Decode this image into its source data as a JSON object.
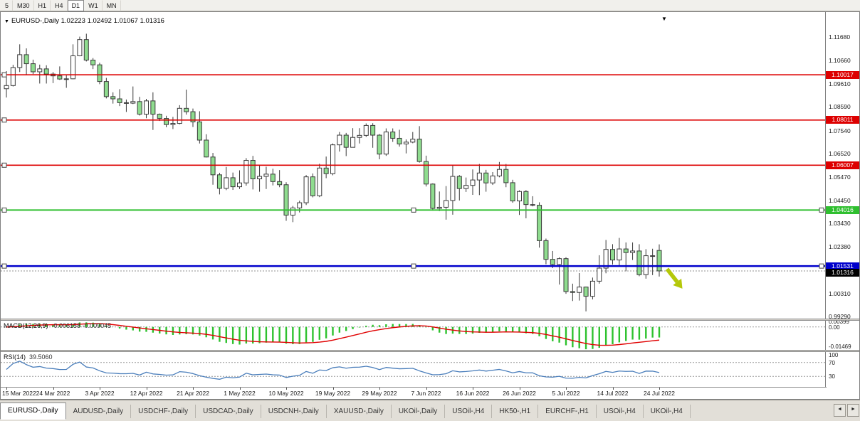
{
  "toolbar": {
    "timeframes": [
      "5",
      "M30",
      "H1",
      "H4",
      "D1",
      "W1",
      "MN"
    ],
    "active": "D1"
  },
  "chart_header": {
    "symbol": "EURUSD-,Daily",
    "ohlc": "1.02223 1.02492 1.01067 1.01316",
    "dropdown_icon": "▼",
    "shift_marker_icon": "▼"
  },
  "chart_data": {
    "type": "candlestick",
    "symbol": "EURUSD-",
    "timeframe": "Daily",
    "title": "EURUSD-,Daily",
    "ohlc_current": {
      "open": 1.02223,
      "high": 1.02492,
      "low": 1.01067,
      "close": 1.01316
    },
    "ylim": [
      0.992,
      1.128
    ],
    "y_ticks": [
      1.1168,
      1.1066,
      1.0961,
      1.0859,
      1.0754,
      1.0652,
      1.0547,
      1.0445,
      1.0343,
      1.0238,
      1.0031,
      0.9929
    ],
    "x_labels": [
      "15 Mar 2022",
      "24 Mar 2022",
      "3 Apr 2022",
      "12 Apr 2022",
      "21 Apr 2022",
      "1 May 2022",
      "10 May 2022",
      "19 May 2022",
      "29 May 2022",
      "7 Jun 2022",
      "16 Jun 2022",
      "26 Jun 2022",
      "5 Jul 2022",
      "14 Jul 2022",
      "24 Jul 2022"
    ],
    "candles": [
      [
        1.094,
        1.1018,
        1.0901,
        1.0954
      ],
      [
        1.0954,
        1.1046,
        1.095,
        1.1034
      ],
      [
        1.1034,
        1.1137,
        1.1014,
        1.1091
      ],
      [
        1.1091,
        1.1119,
        1.1003,
        1.1051
      ],
      [
        1.1051,
        1.1069,
        1.1005,
        1.1015
      ],
      [
        1.1015,
        1.1047,
        1.0963,
        1.1028
      ],
      [
        1.1028,
        1.1044,
        1.0963,
        1.1005
      ],
      [
        1.1005,
        1.1014,
        1.0965,
        1.0997
      ],
      [
        1.0997,
        1.1039,
        1.0979,
        1.0983
      ],
      [
        1.0983,
        1.0999,
        1.0944,
        1.0984
      ],
      [
        1.0984,
        1.1137,
        1.0982,
        1.1086
      ],
      [
        1.1086,
        1.1171,
        1.1084,
        1.1158
      ],
      [
        1.1158,
        1.1184,
        1.1061,
        1.1067
      ],
      [
        1.1067,
        1.1076,
        1.1027,
        1.1046
      ],
      [
        1.1046,
        1.1055,
        1.096,
        1.0972
      ],
      [
        1.0972,
        1.0988,
        1.0897,
        1.0905
      ],
      [
        1.0905,
        1.0924,
        1.0874,
        1.0895
      ],
      [
        1.0895,
        1.0938,
        1.0863,
        1.0878
      ],
      [
        1.0878,
        1.0892,
        1.0837,
        1.0876
      ],
      [
        1.0876,
        1.095,
        1.0872,
        1.0883
      ],
      [
        1.0883,
        1.0904,
        1.0821,
        1.0827
      ],
      [
        1.0827,
        1.0895,
        1.0809,
        1.0886
      ],
      [
        1.0886,
        1.0924,
        1.0757,
        1.0827
      ],
      [
        1.0827,
        1.083,
        1.0797,
        1.0808
      ],
      [
        1.0808,
        1.082,
        1.0769,
        1.0781
      ],
      [
        1.0781,
        1.0815,
        1.0761,
        1.0786
      ],
      [
        1.0786,
        1.0867,
        1.0782,
        1.0853
      ],
      [
        1.0853,
        1.0936,
        1.0825,
        1.0838
      ],
      [
        1.0838,
        1.0852,
        1.077,
        1.0793
      ],
      [
        1.0793,
        1.084,
        1.0697,
        1.0712
      ],
      [
        1.0712,
        1.0738,
        1.0635,
        1.0637
      ],
      [
        1.0637,
        1.0655,
        1.0514,
        1.0558
      ],
      [
        1.0558,
        1.0567,
        1.0471,
        1.0498
      ],
      [
        1.0498,
        1.0593,
        1.049,
        1.0545
      ],
      [
        1.0545,
        1.0568,
        1.0491,
        1.0505
      ],
      [
        1.0505,
        1.0578,
        1.0495,
        1.0522
      ],
      [
        1.0522,
        1.0632,
        1.051,
        1.0622
      ],
      [
        1.0622,
        1.0642,
        1.0493,
        1.054
      ],
      [
        1.054,
        1.0599,
        1.0483,
        1.0551
      ],
      [
        1.0551,
        1.0594,
        1.0495,
        1.0561
      ],
      [
        1.0561,
        1.0585,
        1.0511,
        1.0528
      ],
      [
        1.0528,
        1.0579,
        1.0503,
        1.0514
      ],
      [
        1.0514,
        1.0525,
        1.0354,
        1.0379
      ],
      [
        1.0379,
        1.042,
        1.0348,
        1.0411
      ],
      [
        1.0411,
        1.0443,
        1.0391,
        1.0434
      ],
      [
        1.0434,
        1.0557,
        1.0424,
        1.0549
      ],
      [
        1.0549,
        1.0564,
        1.0458,
        1.0465
      ],
      [
        1.0465,
        1.0607,
        1.0459,
        1.0588
      ],
      [
        1.0588,
        1.0639,
        1.0543,
        1.0563
      ],
      [
        1.0563,
        1.0697,
        1.0556,
        1.0691
      ],
      [
        1.0691,
        1.0748,
        1.0661,
        1.0734
      ],
      [
        1.0734,
        1.0744,
        1.0641,
        1.068
      ],
      [
        1.068,
        1.0765,
        1.068,
        1.0724
      ],
      [
        1.0724,
        1.0765,
        1.0697,
        1.0733
      ],
      [
        1.0733,
        1.0786,
        1.0726,
        1.0777
      ],
      [
        1.0777,
        1.0787,
        1.0678,
        1.0734
      ],
      [
        1.0734,
        1.0739,
        1.0627,
        1.065
      ],
      [
        1.065,
        1.0764,
        1.0642,
        1.0748
      ],
      [
        1.0748,
        1.0764,
        1.0704,
        1.072
      ],
      [
        1.072,
        1.0758,
        1.0683,
        1.0695
      ],
      [
        1.0695,
        1.0715,
        1.0653,
        1.0703
      ],
      [
        1.0703,
        1.0748,
        1.0698,
        1.0716
      ],
      [
        1.0716,
        1.0774,
        1.0612,
        1.0617
      ],
      [
        1.0617,
        1.0643,
        1.0506,
        1.0517
      ],
      [
        1.0517,
        1.052,
        1.0399,
        1.0409
      ],
      [
        1.0409,
        1.0484,
        1.0397,
        1.0414
      ],
      [
        1.0414,
        1.0508,
        1.0359,
        1.0444
      ],
      [
        1.0444,
        1.0601,
        1.0381,
        1.0551
      ],
      [
        1.0551,
        1.0557,
        1.0444,
        1.0497
      ],
      [
        1.0497,
        1.0546,
        1.0482,
        1.0511
      ],
      [
        1.0511,
        1.0582,
        1.0469,
        1.0535
      ],
      [
        1.0535,
        1.0606,
        1.0468,
        1.0566
      ],
      [
        1.0566,
        1.058,
        1.0483,
        1.0522
      ],
      [
        1.0522,
        1.057,
        1.0513,
        1.0553
      ],
      [
        1.0553,
        1.0615,
        1.0547,
        1.0582
      ],
      [
        1.0582,
        1.0606,
        1.0503,
        1.0523
      ],
      [
        1.0523,
        1.0536,
        1.0434,
        1.0442
      ],
      [
        1.0442,
        1.0489,
        1.038,
        1.0484
      ],
      [
        1.0484,
        1.049,
        1.0365,
        1.0426
      ],
      [
        1.0426,
        1.0463,
        1.0418,
        1.0423
      ],
      [
        1.0423,
        1.0436,
        1.0235,
        1.0266
      ],
      [
        1.0266,
        1.0275,
        1.0161,
        1.0183
      ],
      [
        1.0183,
        1.022,
        1.0144,
        1.016
      ],
      [
        1.016,
        1.0192,
        1.0071,
        1.0186
      ],
      [
        1.0186,
        1.0192,
        1.003,
        1.004
      ],
      [
        1.004,
        1.0075,
        0.9998,
        1.0036
      ],
      [
        1.0036,
        1.0122,
        1.0,
        1.006
      ],
      [
        1.006,
        1.0062,
        0.9952,
        1.0019
      ],
      [
        1.0019,
        1.0102,
        1.0005,
        1.0086
      ],
      [
        1.0086,
        1.0201,
        1.0075,
        1.0144
      ],
      [
        1.0144,
        1.0269,
        1.0121,
        1.0227
      ],
      [
        1.0227,
        1.025,
        1.016,
        1.018
      ],
      [
        1.018,
        1.0278,
        1.0152,
        1.0229
      ],
      [
        1.0229,
        1.0258,
        1.013,
        1.0213
      ],
      [
        1.0213,
        1.0258,
        1.018,
        1.022
      ],
      [
        1.022,
        1.025,
        1.0108,
        1.0115
      ],
      [
        1.0115,
        1.0228,
        1.0097,
        1.0199
      ],
      [
        1.0199,
        1.023,
        1.0113,
        1.0196
      ],
      [
        1.02223,
        1.02492,
        1.01067,
        1.01316
      ]
    ],
    "hlines": [
      {
        "price": 1.10017,
        "label": "1.10017",
        "color": "#dd0000",
        "width": 1.6,
        "handles": [
          "left"
        ]
      },
      {
        "price": 1.08011,
        "label": "1.08011",
        "color": "#dd0000",
        "width": 1.6,
        "handles": [
          "left"
        ]
      },
      {
        "price": 1.06007,
        "label": "1.06007",
        "color": "#dd0000",
        "width": 1.6,
        "handles": [
          "left"
        ]
      },
      {
        "price": 1.04016,
        "label": "1.04016",
        "color": "#2fbf2f",
        "width": 2,
        "handles": [
          "left",
          "center",
          "right"
        ]
      },
      {
        "price": 1.01531,
        "label": "1.01531",
        "color": "#0000cc",
        "width": 2.6,
        "handles": [
          "left",
          "center",
          "right"
        ]
      }
    ],
    "current_price": {
      "value": 1.01316,
      "label": "1.01316",
      "badge_color": "#000000"
    },
    "arrow": {
      "x": 936,
      "price": 1.014,
      "color": "#b5c80a",
      "direction": "down-right"
    },
    "colors": {
      "bull": "#ffffff",
      "bear": "#8fdc8f",
      "candle_border": "#3a3a3a",
      "background": "#ffffff"
    },
    "indicators": {
      "macd": {
        "name": "MACD(12,26,9)",
        "values": "-0.006158 -0.009045",
        "params": {
          "fast": 12,
          "slow": 26,
          "signal": 9
        },
        "range": [
          -0.0147,
          0.004
        ],
        "axis_labels": [
          "0.00399",
          "0.00",
          "-0.01469"
        ],
        "histogram_color": "#2ec22e",
        "signal_color": "#e00000"
      },
      "rsi": {
        "name": "RSI(14)",
        "value": "39.5060",
        "period": 14,
        "levels": [
          70,
          30
        ],
        "range": [
          0,
          100
        ],
        "axis_labels": [
          "100",
          "70",
          "30"
        ],
        "line_color": "#4a7ebb"
      }
    }
  },
  "tabs": {
    "items": [
      {
        "label": "EURUSD-,Daily",
        "active": true
      },
      {
        "label": "AUDUSD-,Daily"
      },
      {
        "label": "USDCHF-,Daily"
      },
      {
        "label": "USDCAD-,Daily"
      },
      {
        "label": "USDCNH-,Daily"
      },
      {
        "label": "XAUUSD-,Daily"
      },
      {
        "label": "UKOil-,Daily"
      },
      {
        "label": "USOil-,H4"
      },
      {
        "label": "HK50-,H1"
      },
      {
        "label": "EURCHF-,H1"
      },
      {
        "label": "USOil-,H4"
      },
      {
        "label": "UKOil-,H4"
      }
    ],
    "nav_left": "◄",
    "nav_right": "►"
  }
}
